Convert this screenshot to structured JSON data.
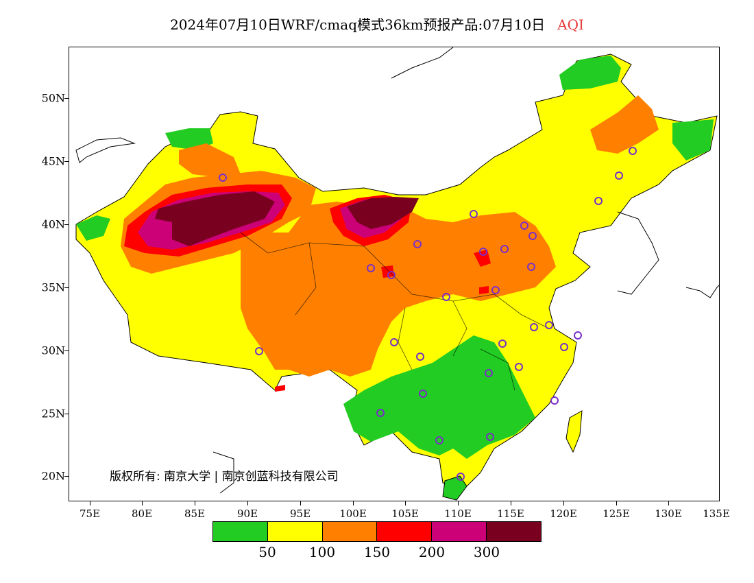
{
  "title": {
    "main": "2024年07月10日WRF/cmaq模式36km预报产品:07月10日",
    "variable": "AQI"
  },
  "y_axis": {
    "ticks": [
      "20N",
      "25N",
      "30N",
      "35N",
      "40N",
      "45N",
      "50N"
    ]
  },
  "x_axis": {
    "ticks": [
      "75E",
      "80E",
      "85E",
      "90E",
      "95E",
      "100E",
      "105E",
      "110E",
      "115E",
      "120E",
      "125E",
      "130E",
      "135E"
    ]
  },
  "copyright": "版权所有: 南京大学 | 南京创蓝科技有限公司",
  "legend": {
    "colors": [
      "#22cc22",
      "#ffff00",
      "#ff8000",
      "#ff0000",
      "#cc0077",
      "#7a0020"
    ],
    "labels": [
      "50",
      "100",
      "150",
      "200",
      "300"
    ]
  }
}
